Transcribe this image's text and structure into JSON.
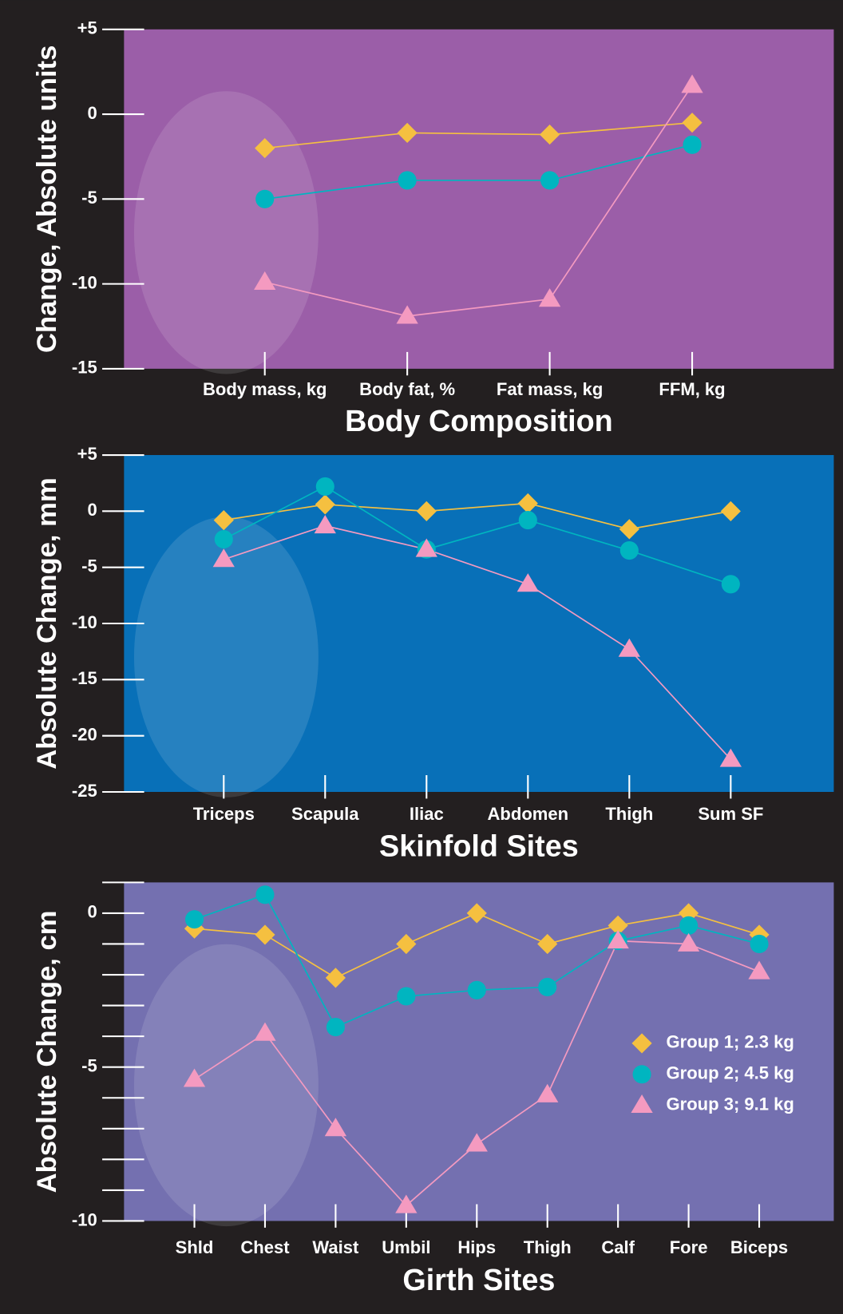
{
  "chart_data": [
    {
      "type": "line",
      "title": "Body Composition",
      "y_label": "Change, Absolute units",
      "plot_background": "#9b5ea8",
      "categories": [
        "Body mass, kg",
        "Body fat, %",
        "Fat mass, kg",
        "FFM, kg"
      ],
      "ylim": [
        -15,
        5
      ],
      "yticks": [
        -15,
        -10,
        -5,
        0,
        {
          "value": 5,
          "label": "+5"
        }
      ],
      "series": [
        {
          "color": "#f5c040",
          "marker": "diamond",
          "values": [
            -2.0,
            -1.1,
            -1.2,
            -0.5
          ]
        },
        {
          "color": "#00b5c0",
          "marker": "circle",
          "values": [
            -5.0,
            -3.9,
            -3.9,
            -1.8
          ]
        },
        {
          "color": "#f49ac0",
          "marker": "triangle",
          "values": [
            -9.9,
            -11.9,
            -10.9,
            1.7
          ]
        }
      ]
    },
    {
      "type": "line",
      "title": "Skinfold Sites",
      "y_label": "Absolute Change, mm",
      "plot_background": "#0870b8",
      "categories": [
        "Triceps",
        "Scapula",
        "Iliac",
        "Abdomen",
        "Thigh",
        "Sum SF"
      ],
      "ylim": [
        -25,
        5
      ],
      "yticks": [
        -25,
        -20,
        -15,
        -10,
        -5,
        0,
        {
          "value": 5,
          "label": "+5"
        }
      ],
      "series": [
        {
          "color": "#f5c040",
          "marker": "diamond",
          "values": [
            -0.8,
            0.6,
            0,
            0.7,
            -1.6,
            0
          ]
        },
        {
          "color": "#00b5c0",
          "marker": "circle",
          "values": [
            -2.5,
            2.2,
            -3.4,
            -0.8,
            -3.5,
            -6.5
          ]
        },
        {
          "color": "#f49ac0",
          "marker": "triangle",
          "values": [
            -4.3,
            -1.3,
            -3.4,
            -6.5,
            -12.3,
            -22.1
          ]
        }
      ]
    },
    {
      "type": "line",
      "title": "Girth Sites",
      "y_label": "Absolute Change, cm",
      "plot_background": "#7470b0",
      "categories": [
        "Shld",
        "Chest",
        "Waist",
        "Umbil",
        "Hips",
        "Thigh",
        "Calf",
        "Fore",
        "Biceps"
      ],
      "ylim": [
        -10,
        1
      ],
      "yticks": [
        -10,
        -5,
        0
      ],
      "minor_yticks": [
        1,
        -1,
        -2,
        -3,
        -4,
        -6,
        -7,
        -8,
        -9
      ],
      "legend": "right",
      "series": [
        {
          "name": "Group 1; 2.3 kg",
          "color": "#f5c040",
          "marker": "diamond",
          "values": [
            -0.5,
            -0.7,
            -2.1,
            -1.0,
            0,
            -1.0,
            -0.4,
            0,
            -0.7
          ]
        },
        {
          "name": "Group 2; 4.5 kg",
          "color": "#00b5c0",
          "marker": "circle",
          "values": [
            -0.2,
            0.6,
            -3.7,
            -2.7,
            -2.5,
            -2.4,
            -0.9,
            -0.4,
            -1.0
          ]
        },
        {
          "name": "Group 3; 9.1 kg",
          "color": "#f49ac0",
          "marker": "triangle",
          "values": [
            -5.4,
            -3.9,
            -7.0,
            -9.5,
            -7.5,
            -5.9,
            -0.9,
            -1.0,
            -1.9
          ]
        }
      ]
    }
  ]
}
